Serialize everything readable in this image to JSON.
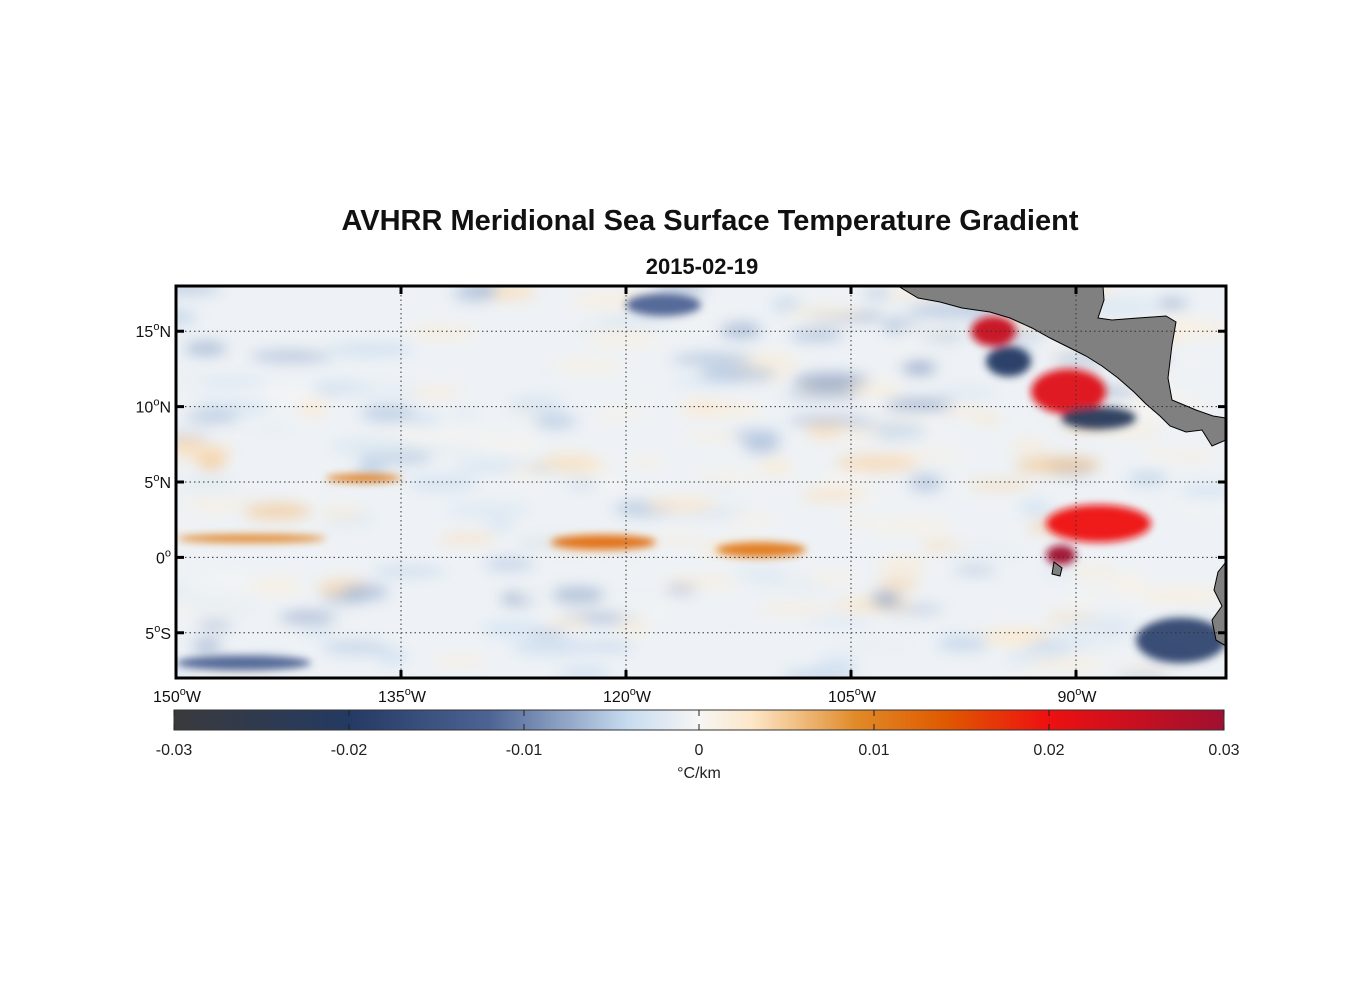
{
  "figure": {
    "title": "AVHRR Meridional Sea Surface Temperature Gradient",
    "subtitle": "2015-02-19"
  },
  "map": {
    "lon_range": [
      -150,
      -80
    ],
    "lat_range": [
      -8,
      18
    ],
    "land_color": "#808080",
    "grid": "dotted",
    "lat_ticks": [
      {
        "value": 15,
        "num": "15",
        "hemi": "N"
      },
      {
        "value": 10,
        "num": "10",
        "hemi": "N"
      },
      {
        "value": 5,
        "num": "5",
        "hemi": "N"
      },
      {
        "value": 0,
        "num": "0",
        "hemi": ""
      },
      {
        "value": -5,
        "num": "5",
        "hemi": "S"
      }
    ],
    "lon_ticks": [
      {
        "value": -150,
        "num": "150",
        "hemi": "W"
      },
      {
        "value": -135,
        "num": "135",
        "hemi": "W"
      },
      {
        "value": -120,
        "num": "120",
        "hemi": "W"
      },
      {
        "value": -105,
        "num": "105",
        "hemi": "W"
      },
      {
        "value": -90,
        "num": "90",
        "hemi": "W"
      }
    ]
  },
  "colorbar": {
    "label": "°C/km",
    "ticks": [
      "-0.03",
      "-0.02",
      "-0.01",
      "0",
      "0.01",
      "0.02",
      "0.03"
    ],
    "range": [
      -0.03,
      0.03
    ],
    "colors": [
      "#3a3a3c",
      "#243a63",
      "#4d6394",
      "#c8dcf0",
      "#f6f6f4",
      "#fde7c8",
      "#e08a28",
      "#e05a00",
      "#ee1010",
      "#a01030"
    ]
  },
  "chart_data": {
    "type": "heatmap",
    "title": "AVHRR Meridional Sea Surface Temperature Gradient",
    "subtitle": "2015-02-19",
    "x_range_lon": [
      -150,
      -80
    ],
    "y_range_lat": [
      -8,
      18
    ],
    "colorbar_range": [
      -0.03,
      0.03
    ],
    "colorbar_label": "°C/km",
    "features": [
      {
        "kind": "positive_front",
        "lon": [
          -150,
          -140
        ],
        "lat": [
          1.0,
          1.5
        ],
        "value": 0.01
      },
      {
        "kind": "positive_front",
        "lon": [
          -140,
          -135
        ],
        "lat": [
          5.0,
          5.5
        ],
        "value": 0.011
      },
      {
        "kind": "positive_front",
        "lon": [
          -125,
          -118
        ],
        "lat": [
          0.5,
          1.5
        ],
        "value": 0.012
      },
      {
        "kind": "positive_front",
        "lon": [
          -114,
          -108
        ],
        "lat": [
          0.0,
          1.0
        ],
        "value": 0.011
      },
      {
        "kind": "positive_front",
        "lon": [
          -92,
          -85
        ],
        "lat": [
          1.0,
          3.5
        ],
        "value": 0.02
      },
      {
        "kind": "positive_front",
        "lon": [
          -93,
          -88
        ],
        "lat": [
          9.5,
          12.5
        ],
        "value": 0.022
      },
      {
        "kind": "positive_front",
        "lon": [
          -97,
          -94
        ],
        "lat": [
          14.0,
          16.0
        ],
        "value": 0.025
      },
      {
        "kind": "positive_front",
        "lon": [
          -92,
          -90
        ],
        "lat": [
          -0.5,
          0.8
        ],
        "value": 0.03
      },
      {
        "kind": "negative_front",
        "lon": [
          -91,
          -86
        ],
        "lat": [
          8.5,
          10.0
        ],
        "value": -0.022
      },
      {
        "kind": "negative_front",
        "lon": [
          -96,
          -93
        ],
        "lat": [
          12.0,
          14.0
        ],
        "value": -0.02
      },
      {
        "kind": "negative_front",
        "lon": [
          -150,
          -141
        ],
        "lat": [
          -7.5,
          -6.5
        ],
        "value": -0.012
      },
      {
        "kind": "negative_front",
        "lon": [
          -120,
          -115
        ],
        "lat": [
          16.0,
          17.5
        ],
        "value": -0.012
      },
      {
        "kind": "negative_front",
        "lon": [
          -86,
          -80
        ],
        "lat": [
          -7.0,
          -4.0
        ],
        "value": -0.018
      }
    ]
  }
}
